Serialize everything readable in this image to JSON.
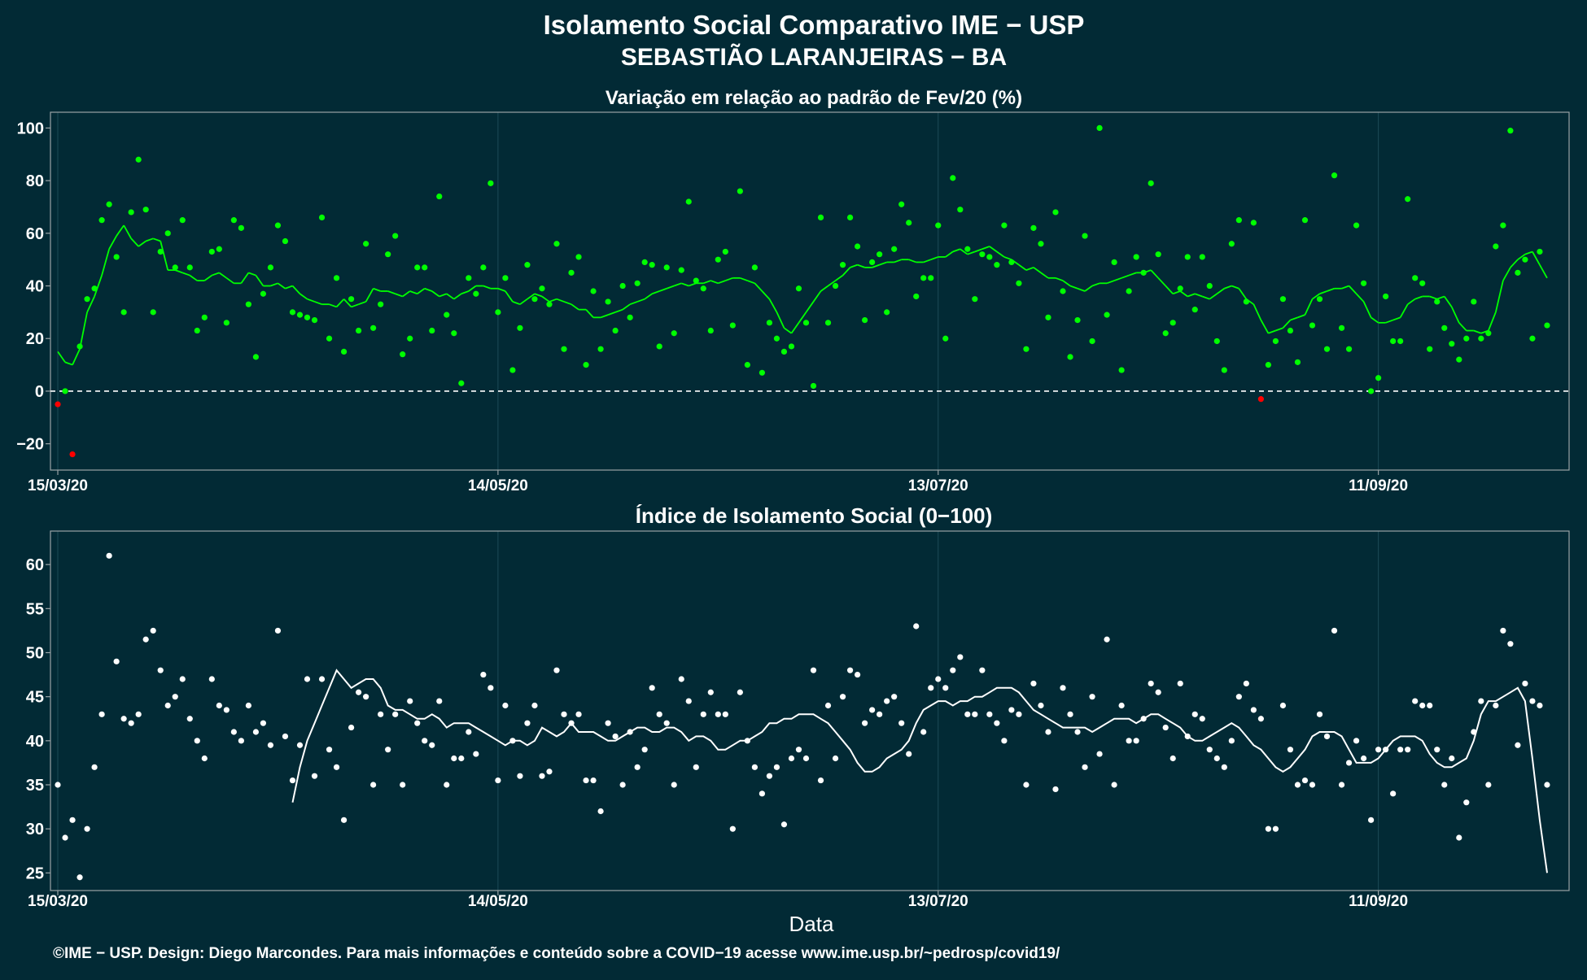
{
  "title": "Isolamento Social Comparativo IME − USP",
  "subtitle": "SEBASTIÃO LARANJEIRAS − BA",
  "xlabel": "Data",
  "footer": "©IME − USP. Design: Diego Marcondes. Para mais informações e conteúdo sobre a COVID−19 acesse www.ime.usp.br/~pedrosp/covid19/",
  "colors": {
    "background": "#022a35",
    "positive": "#00ff00",
    "negative": "#ff0000",
    "index": "#ffffff",
    "grid": "#1d4b57",
    "frame": "#9aa3a6"
  },
  "chart_data": [
    {
      "type": "scatter",
      "title": "Variação em relação ao padrão de Fev/20 (%)",
      "x_ticks": [
        "15/03/20",
        "14/05/20",
        "13/07/20",
        "11/09/20"
      ],
      "x_tick_days": [
        0,
        60,
        120,
        180
      ],
      "y_ticks": [
        -20,
        0,
        20,
        40,
        60,
        80,
        100
      ],
      "ylim": [
        -30,
        106
      ],
      "xlim": [
        -1,
        206
      ],
      "reference_line": 0,
      "start_date": "15/03/20",
      "points": [
        -5,
        0,
        -24,
        17,
        35,
        39,
        65,
        71,
        51,
        30,
        68,
        88,
        69,
        30,
        53,
        60,
        47,
        65,
        47,
        23,
        28,
        53,
        54,
        26,
        65,
        62,
        33,
        13,
        37,
        47,
        63,
        57,
        30,
        29,
        28,
        27,
        66,
        20,
        43,
        15,
        35,
        23,
        56,
        24,
        33,
        52,
        59,
        14,
        20,
        47,
        47,
        23,
        74,
        29,
        22,
        3,
        43,
        37,
        47,
        79,
        30,
        43,
        8,
        24,
        48,
        35,
        39,
        33,
        56,
        16,
        45,
        51,
        10,
        38,
        16,
        34,
        23,
        40,
        28,
        41,
        49,
        48,
        17,
        47,
        22,
        46,
        72,
        42,
        39,
        23,
        50,
        53,
        25,
        76,
        10,
        47,
        7,
        26,
        20,
        15,
        17,
        39,
        26,
        2,
        66,
        26,
        40,
        48,
        66,
        55,
        27,
        49,
        52,
        30,
        54,
        71,
        64,
        36,
        43,
        43,
        63,
        20,
        81,
        69,
        54,
        35,
        52,
        51,
        48,
        63,
        49,
        41,
        16,
        62,
        56,
        28,
        68,
        38,
        13,
        27,
        59,
        19,
        100,
        29,
        49,
        8,
        38,
        51,
        45,
        79,
        52,
        22,
        26,
        39,
        51,
        31,
        51,
        40,
        19,
        8,
        56,
        65,
        34,
        64,
        -3,
        10,
        19,
        35,
        23,
        11,
        65,
        25,
        35,
        16,
        82,
        24,
        16,
        63,
        41,
        0,
        5,
        36,
        19,
        19,
        73,
        43,
        41,
        16,
        34,
        24,
        18,
        12,
        20,
        34,
        20,
        22,
        55,
        63,
        99,
        45,
        50,
        20,
        53,
        25
      ],
      "trend": [
        15,
        11,
        10,
        16,
        30,
        36,
        44,
        54,
        59,
        63,
        58,
        55,
        57,
        58,
        57,
        46,
        46,
        45,
        44,
        42,
        42,
        44,
        45,
        43,
        41,
        41,
        45,
        44,
        40,
        40,
        41,
        39,
        40,
        37,
        35,
        34,
        33,
        33,
        32,
        35,
        32,
        33,
        34,
        39,
        38,
        38,
        37,
        36,
        38,
        37,
        39,
        38,
        36,
        37,
        35,
        37,
        38,
        40,
        40,
        39,
        39,
        38,
        34,
        33,
        35,
        37,
        36,
        34,
        35,
        34,
        33,
        31,
        31,
        28,
        28,
        29,
        30,
        31,
        33,
        34,
        35,
        37,
        38,
        39,
        40,
        41,
        40,
        41,
        41,
        42,
        41,
        42,
        43,
        43,
        42,
        41,
        38,
        35,
        30,
        24,
        22,
        26,
        30,
        34,
        38,
        40,
        42,
        44,
        47,
        48,
        47,
        47,
        48,
        49,
        49,
        50,
        50,
        49,
        49,
        50,
        51,
        51,
        53,
        54,
        52,
        53,
        54,
        55,
        53,
        51,
        50,
        48,
        46,
        47,
        45,
        43,
        43,
        42,
        40,
        39,
        38,
        40,
        41,
        41,
        42,
        43,
        44,
        45,
        45,
        46,
        43,
        40,
        37,
        38,
        36,
        37,
        36,
        35,
        37,
        39,
        40,
        39,
        35,
        33,
        27,
        22,
        23,
        24,
        27,
        28,
        29,
        35,
        37,
        38,
        39,
        39,
        40,
        37,
        34,
        28,
        26,
        26,
        27,
        28,
        33,
        35,
        36,
        36,
        35,
        36,
        32,
        26,
        23,
        23,
        22,
        23,
        30,
        42,
        47,
        50,
        52,
        53,
        48,
        43
      ],
      "trend_start_day": 0
    },
    {
      "type": "scatter",
      "title": "Índice de Isolamento Social (0−100)",
      "x_ticks": [
        "15/03/20",
        "14/05/20",
        "13/07/20",
        "11/09/20"
      ],
      "x_tick_days": [
        0,
        60,
        120,
        180
      ],
      "y_ticks": [
        25,
        30,
        35,
        40,
        45,
        50,
        55,
        60
      ],
      "ylim": [
        23,
        63.8
      ],
      "xlim": [
        -1,
        206
      ],
      "start_date": "15/03/20",
      "points": [
        35,
        29,
        31,
        24.5,
        30,
        37,
        43,
        61,
        49,
        42.5,
        42,
        43,
        51.5,
        52.5,
        48,
        44,
        45,
        47,
        42.5,
        40,
        38,
        47,
        44,
        43.5,
        41,
        40,
        44,
        41,
        42,
        39.5,
        52.5,
        40.5,
        35.5,
        39.5,
        47,
        36,
        47,
        39,
        37,
        31,
        41.5,
        45.5,
        45,
        35,
        43,
        39,
        43,
        35,
        44.5,
        42,
        40,
        39.5,
        44.5,
        35,
        38,
        38,
        41,
        38.5,
        47.5,
        46,
        35.5,
        44,
        40,
        36,
        42,
        44,
        36,
        36.5,
        48,
        43,
        42,
        43,
        35.5,
        35.5,
        32,
        42,
        40.5,
        35,
        41,
        37,
        39,
        46,
        43,
        42,
        35,
        47,
        44.5,
        37,
        43,
        45.5,
        43,
        43,
        30,
        45.5,
        40,
        37,
        34,
        36,
        37,
        30.5,
        38,
        39,
        38,
        48,
        35.5,
        44,
        38,
        45,
        48,
        47.5,
        42,
        43.5,
        43,
        44.5,
        45,
        42,
        38.5,
        53,
        41,
        46,
        47,
        46,
        48,
        49.5,
        43,
        43,
        48,
        43,
        42,
        40,
        43.5,
        43,
        35,
        46.5,
        44,
        41,
        34.5,
        46,
        43,
        41,
        37,
        45,
        38.5,
        51.5,
        35,
        44,
        40,
        40,
        42.5,
        46.5,
        45.5,
        41.5,
        38,
        46.5,
        40.5,
        43,
        42.5,
        39,
        38,
        37,
        40,
        45,
        46.5,
        43.5,
        42.5,
        30,
        30,
        44,
        39,
        35,
        35.5,
        35,
        43,
        40.5,
        52.5,
        35,
        37.5,
        40,
        38,
        31,
        39,
        39,
        34,
        39,
        39,
        44.5,
        44,
        44,
        39,
        35,
        38,
        29,
        33,
        41,
        44.5,
        35,
        44,
        52.5,
        51,
        39.5,
        46.5,
        44.5,
        44,
        35
      ],
      "trend": [
        33,
        37,
        40,
        42,
        44,
        46,
        48,
        47,
        46,
        46.5,
        47,
        47,
        46,
        44,
        43.5,
        43.5,
        43,
        42.5,
        42.5,
        43,
        42.5,
        41.5,
        42,
        42,
        42,
        41.5,
        41,
        40.5,
        40,
        39.5,
        40,
        40,
        39.5,
        40,
        41.5,
        41,
        40.5,
        41,
        42,
        41,
        41,
        41,
        40.5,
        40,
        40,
        40.5,
        41,
        41.5,
        41.5,
        41,
        41,
        41.5,
        41.5,
        41,
        40,
        40.5,
        40.5,
        40,
        39,
        39,
        39.5,
        40,
        40,
        40.5,
        41,
        42,
        42,
        42.5,
        42.5,
        43,
        43,
        43,
        42.5,
        42,
        41,
        40,
        39,
        37.5,
        36.5,
        36.5,
        37,
        38,
        38.5,
        39,
        40,
        42,
        43.5,
        44,
        44.5,
        44.5,
        44,
        44.5,
        44.5,
        45,
        45,
        45.5,
        46,
        46,
        46,
        45.5,
        44.5,
        43.5,
        43,
        42.5,
        42,
        41.5,
        41.5,
        41.5,
        41.5,
        41,
        41.5,
        42,
        42.5,
        42.5,
        42.5,
        42,
        42.5,
        43,
        43,
        42.5,
        42,
        41.5,
        40.5,
        40,
        40,
        40.5,
        41,
        41.5,
        42,
        41.5,
        40.5,
        39.5,
        39,
        38,
        37,
        36.5,
        37,
        38,
        39,
        40.5,
        41,
        41,
        41,
        40.5,
        39,
        37.5,
        37.5,
        37.5,
        38,
        39,
        40,
        40.5,
        40.5,
        40.5,
        40,
        38.5,
        37.5,
        37,
        37,
        37.5,
        38,
        40,
        43,
        44.5,
        44.5,
        45,
        45.5,
        46,
        44.5,
        38,
        31,
        25
      ]
    }
  ]
}
